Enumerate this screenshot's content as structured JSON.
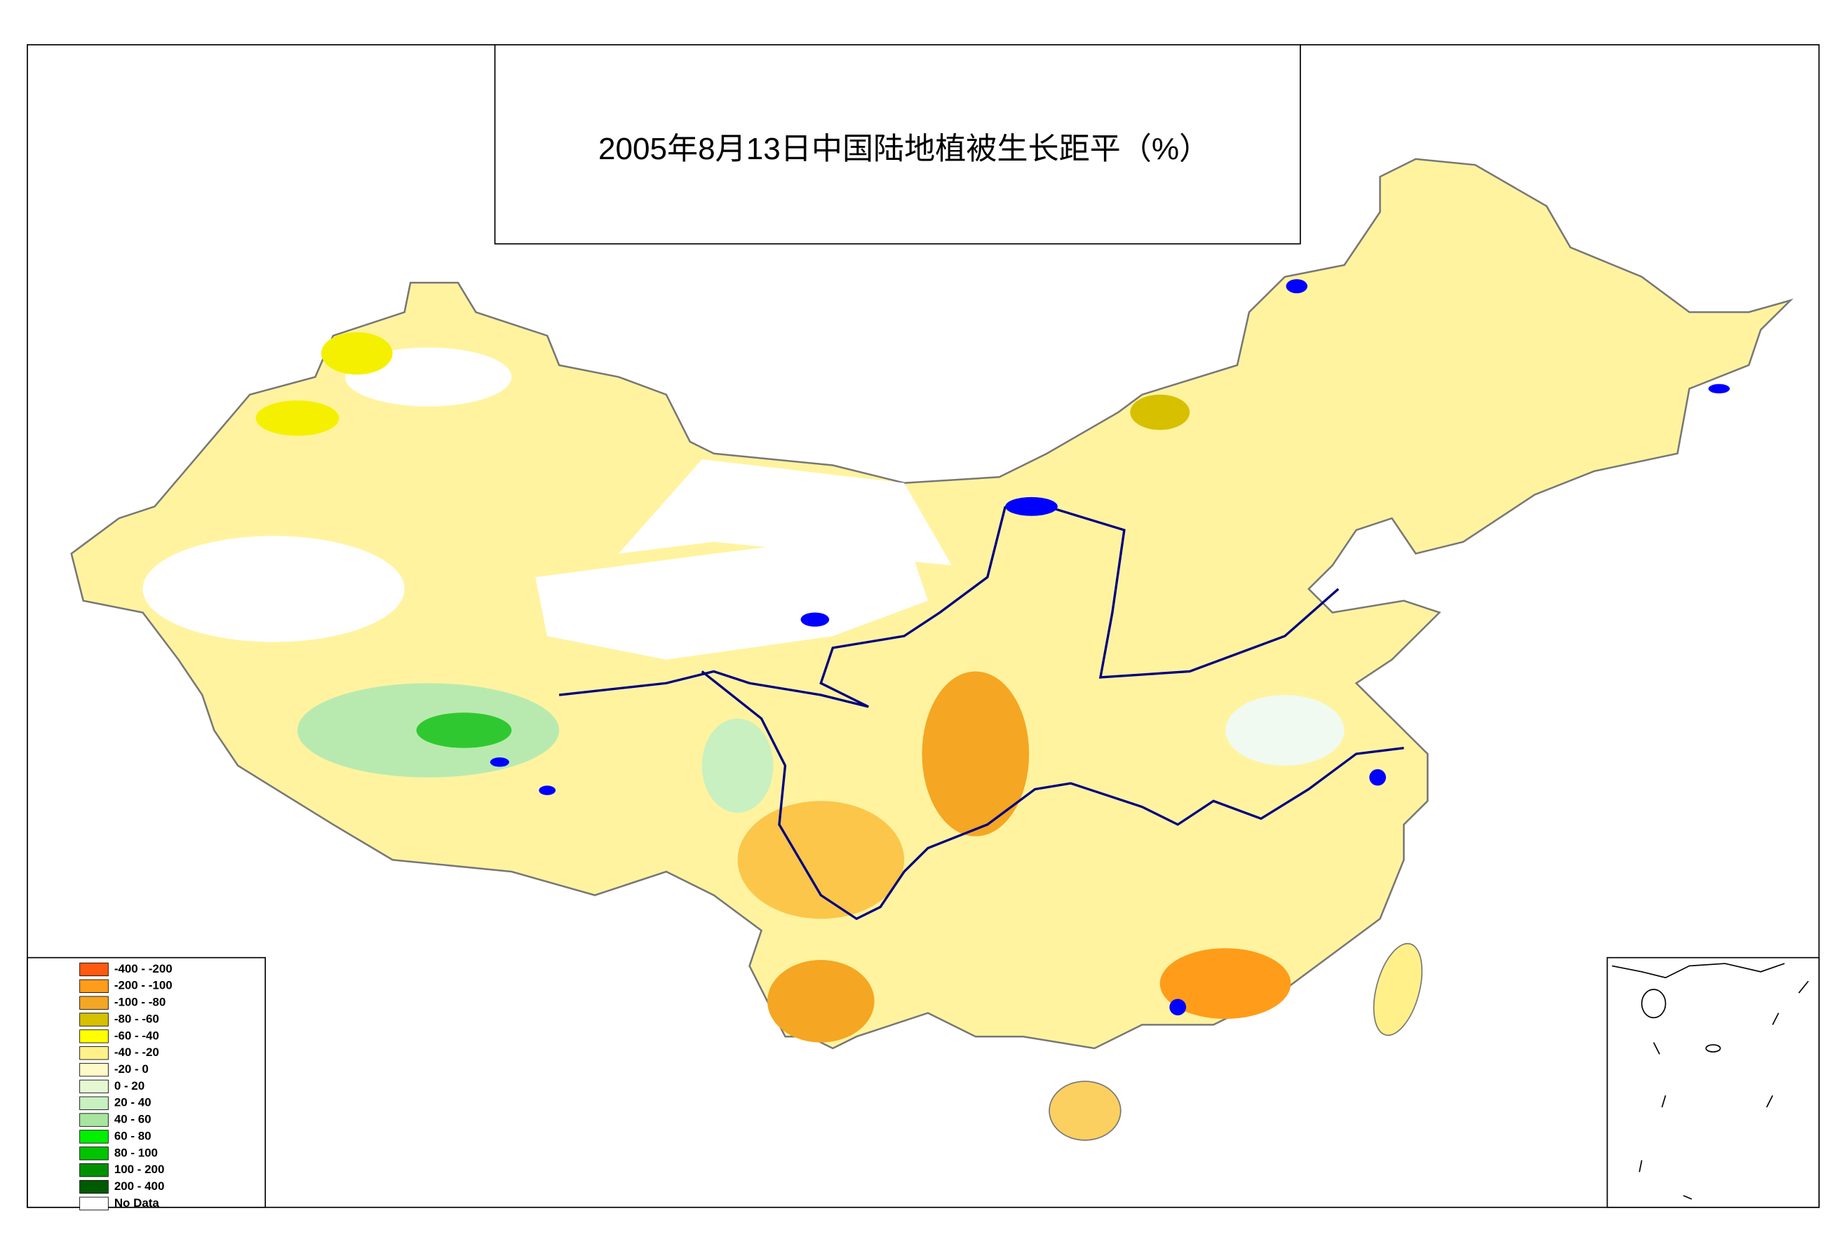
{
  "title": "2005年8月13日中国陆地植被生长距平（%）",
  "legend": [
    {
      "label": "-400 - -200",
      "color": "#ff5a10"
    },
    {
      "label": "-200 - -100",
      "color": "#ff9c1a"
    },
    {
      "label": "-100 - -80",
      "color": "#f5a623"
    },
    {
      "label": "-80 - -60",
      "color": "#d6c000"
    },
    {
      "label": "-60 - -40",
      "color": "#ffff00"
    },
    {
      "label": "-40 - -20",
      "color": "#fff08a"
    },
    {
      "label": "-20 - 0",
      "color": "#fffac8"
    },
    {
      "label": "0 - 20",
      "color": "#e6f8d2"
    },
    {
      "label": "20 - 40",
      "color": "#c8f0c0"
    },
    {
      "label": "40 - 60",
      "color": "#a8e6a0"
    },
    {
      "label": "60 - 80",
      "color": "#00f000"
    },
    {
      "label": "80 - 100",
      "color": "#00c400"
    },
    {
      "label": "100 - 200",
      "color": "#009000"
    },
    {
      "label": "200 - 400",
      "color": "#005a00"
    },
    {
      "label": "No Data",
      "color": "#ffffff"
    }
  ]
}
